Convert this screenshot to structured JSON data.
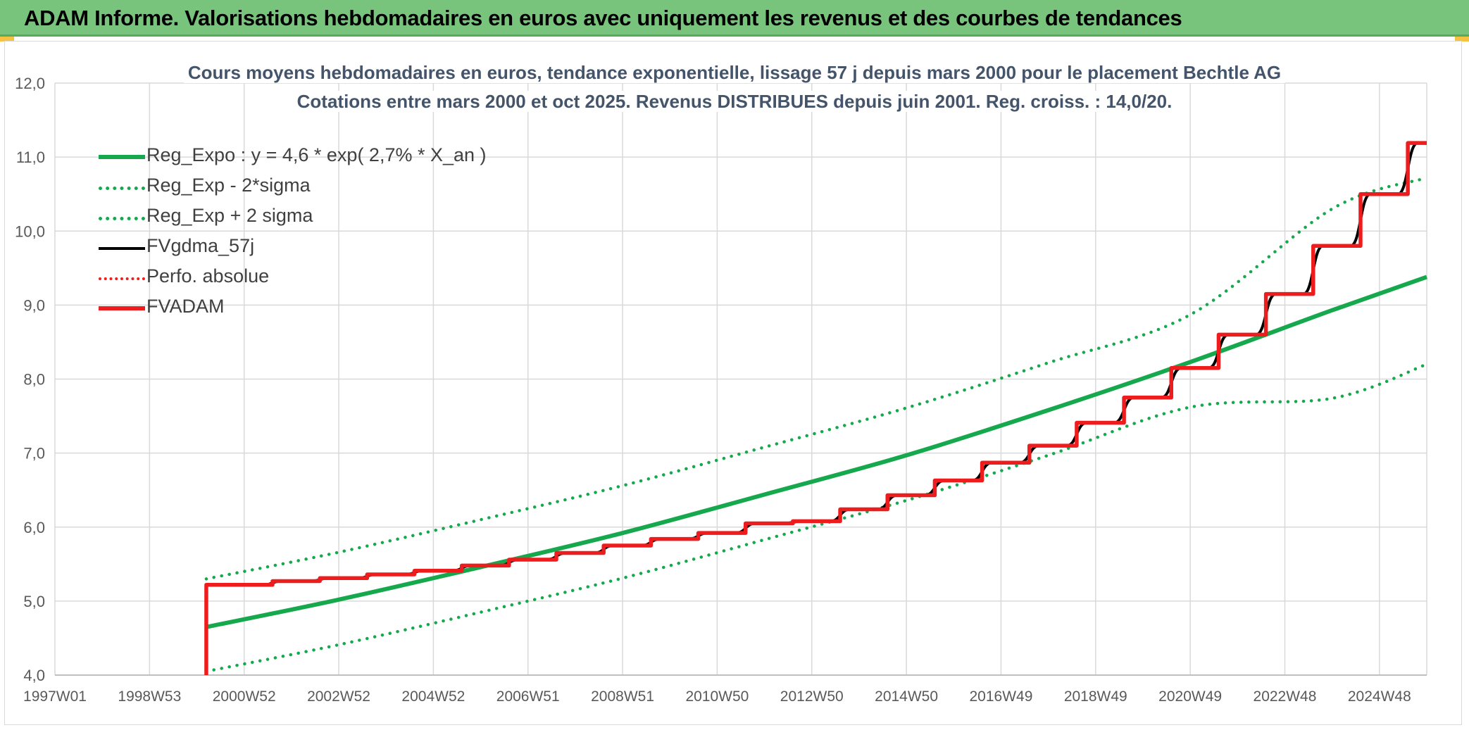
{
  "banner": {
    "title": "ADAM Informe. Valorisations hebdomadaires en euros avec uniquement les revenus et des courbes de tendances"
  },
  "colors": {
    "banner_bg": "#79c47c",
    "reg_green": "#16a84c",
    "adam_red": "#ee1c1c",
    "gdma_black": "#000000",
    "title_color": "#44546a"
  },
  "chart_data": {
    "type": "line",
    "title": "Cours moyens hebdomadaires en euros, tendance exponentielle, lissage 57 j depuis mars 2000 pour le placement Bechtle AG",
    "subtitle": "Cotations entre mars 2000 et oct 2025. Revenus DISTRIBUES depuis juin 2001. Reg. croiss. : 14,0/20.",
    "x_axis": {
      "type": "year",
      "min": 1997.0,
      "max": 2026.0,
      "ticks": [
        {
          "label": "1997W01",
          "year": 1997.0
        },
        {
          "label": "1998W53",
          "year": 1999.0
        },
        {
          "label": "2000W52",
          "year": 2001.0
        },
        {
          "label": "2002W52",
          "year": 2003.0
        },
        {
          "label": "2004W52",
          "year": 2005.0
        },
        {
          "label": "2006W51",
          "year": 2007.0
        },
        {
          "label": "2008W51",
          "year": 2009.0
        },
        {
          "label": "2010W50",
          "year": 2011.0
        },
        {
          "label": "2012W50",
          "year": 2013.0
        },
        {
          "label": "2014W50",
          "year": 2015.0
        },
        {
          "label": "2016W49",
          "year": 2017.0
        },
        {
          "label": "2018W49",
          "year": 2019.0
        },
        {
          "label": "2020W49",
          "year": 2021.0
        },
        {
          "label": "2022W48",
          "year": 2023.0
        },
        {
          "label": "2024W48",
          "year": 2025.0
        }
      ]
    },
    "y_axis": {
      "min": 4.0,
      "max": 12.0,
      "ticks": [
        "4,0",
        "5,0",
        "6,0",
        "7,0",
        "8,0",
        "9,0",
        "10,0",
        "11,0",
        "12,0"
      ]
    },
    "grid": true,
    "legend_position": "top-left",
    "series": [
      {
        "name": "Reg_Expo : y = 4,6 * exp( 2,7% *  X_an )",
        "style": "solid-thick",
        "color": "#16a84c",
        "points": [
          [
            2000.2,
            4.65
          ],
          [
            2003.0,
            5.02
          ],
          [
            2006.0,
            5.46
          ],
          [
            2009.0,
            5.92
          ],
          [
            2012.0,
            6.44
          ],
          [
            2015.0,
            6.97
          ],
          [
            2018.0,
            7.58
          ],
          [
            2021.0,
            8.23
          ],
          [
            2024.0,
            8.93
          ],
          [
            2026.0,
            9.38
          ]
        ]
      },
      {
        "name": "Reg_Exp - 2*sigma",
        "style": "dotted",
        "color": "#16a84c",
        "points": [
          [
            2000.2,
            4.05
          ],
          [
            2003.0,
            4.41
          ],
          [
            2006.0,
            4.85
          ],
          [
            2009.0,
            5.31
          ],
          [
            2012.0,
            5.83
          ],
          [
            2015.0,
            6.36
          ],
          [
            2018.0,
            6.97
          ],
          [
            2021.0,
            7.62
          ],
          [
            2024.0,
            7.74
          ],
          [
            2026.0,
            8.2
          ]
        ]
      },
      {
        "name": "Reg_Exp + 2 sigma",
        "style": "dotted",
        "color": "#16a84c",
        "points": [
          [
            2000.2,
            5.3
          ],
          [
            2003.0,
            5.66
          ],
          [
            2006.0,
            6.1
          ],
          [
            2009.0,
            6.56
          ],
          [
            2012.0,
            7.08
          ],
          [
            2015.0,
            7.61
          ],
          [
            2018.0,
            8.22
          ],
          [
            2021.0,
            8.87
          ],
          [
            2024.0,
            10.3
          ],
          [
            2026.0,
            10.72
          ]
        ]
      },
      {
        "name": "FVgdma_57j",
        "style": "solid",
        "color": "#000000",
        "steps": [
          [
            2000.2,
            4.0
          ],
          [
            2000.2,
            5.22
          ],
          [
            2001.6,
            5.27
          ],
          [
            2002.6,
            5.31
          ],
          [
            2003.6,
            5.36
          ],
          [
            2004.6,
            5.41
          ],
          [
            2005.6,
            5.48
          ],
          [
            2006.6,
            5.56
          ],
          [
            2007.6,
            5.65
          ],
          [
            2008.6,
            5.75
          ],
          [
            2009.6,
            5.84
          ],
          [
            2010.6,
            5.92
          ],
          [
            2011.6,
            6.05
          ],
          [
            2012.6,
            6.08
          ],
          [
            2013.6,
            6.24
          ],
          [
            2014.6,
            6.43
          ],
          [
            2015.6,
            6.63
          ],
          [
            2016.6,
            6.87
          ],
          [
            2017.6,
            7.1
          ],
          [
            2018.6,
            7.41
          ],
          [
            2019.6,
            7.75
          ],
          [
            2020.6,
            8.15
          ],
          [
            2021.6,
            8.6
          ],
          [
            2022.6,
            9.15
          ],
          [
            2023.6,
            9.8
          ],
          [
            2024.6,
            10.5
          ],
          [
            2025.6,
            11.19
          ]
        ],
        "end_x": 2026.0
      },
      {
        "name": "Perfo. absolue",
        "style": "dotted",
        "color": "#ee1c1c",
        "steps": [
          [
            2000.2,
            4.0
          ],
          [
            2000.2,
            5.22
          ],
          [
            2001.6,
            5.27
          ],
          [
            2002.6,
            5.31
          ],
          [
            2003.6,
            5.36
          ],
          [
            2004.6,
            5.41
          ],
          [
            2005.6,
            5.48
          ],
          [
            2006.6,
            5.56
          ],
          [
            2007.6,
            5.65
          ],
          [
            2008.6,
            5.75
          ],
          [
            2009.6,
            5.84
          ],
          [
            2010.6,
            5.92
          ],
          [
            2011.6,
            6.05
          ],
          [
            2012.6,
            6.08
          ],
          [
            2013.6,
            6.24
          ],
          [
            2014.6,
            6.43
          ],
          [
            2015.6,
            6.63
          ],
          [
            2016.6,
            6.87
          ],
          [
            2017.6,
            7.1
          ],
          [
            2018.6,
            7.41
          ],
          [
            2019.6,
            7.75
          ],
          [
            2020.6,
            8.15
          ],
          [
            2021.6,
            8.6
          ],
          [
            2022.6,
            9.15
          ],
          [
            2023.6,
            9.8
          ],
          [
            2024.6,
            10.5
          ],
          [
            2025.6,
            11.19
          ]
        ],
        "end_x": 2026.0
      },
      {
        "name": "FVADAM",
        "style": "solid-thick",
        "color": "#ee1c1c",
        "steps": [
          [
            2000.2,
            4.0
          ],
          [
            2000.2,
            5.22
          ],
          [
            2001.6,
            5.27
          ],
          [
            2002.6,
            5.31
          ],
          [
            2003.6,
            5.36
          ],
          [
            2004.6,
            5.41
          ],
          [
            2005.6,
            5.48
          ],
          [
            2006.6,
            5.56
          ],
          [
            2007.6,
            5.65
          ],
          [
            2008.6,
            5.75
          ],
          [
            2009.6,
            5.84
          ],
          [
            2010.6,
            5.92
          ],
          [
            2011.6,
            6.05
          ],
          [
            2012.6,
            6.08
          ],
          [
            2013.6,
            6.24
          ],
          [
            2014.6,
            6.43
          ],
          [
            2015.6,
            6.63
          ],
          [
            2016.6,
            6.87
          ],
          [
            2017.6,
            7.1
          ],
          [
            2018.6,
            7.41
          ],
          [
            2019.6,
            7.75
          ],
          [
            2020.6,
            8.15
          ],
          [
            2021.6,
            8.6
          ],
          [
            2022.6,
            9.15
          ],
          [
            2023.6,
            9.8
          ],
          [
            2024.6,
            10.5
          ],
          [
            2025.6,
            11.19
          ]
        ],
        "end_x": 2026.0
      }
    ]
  }
}
